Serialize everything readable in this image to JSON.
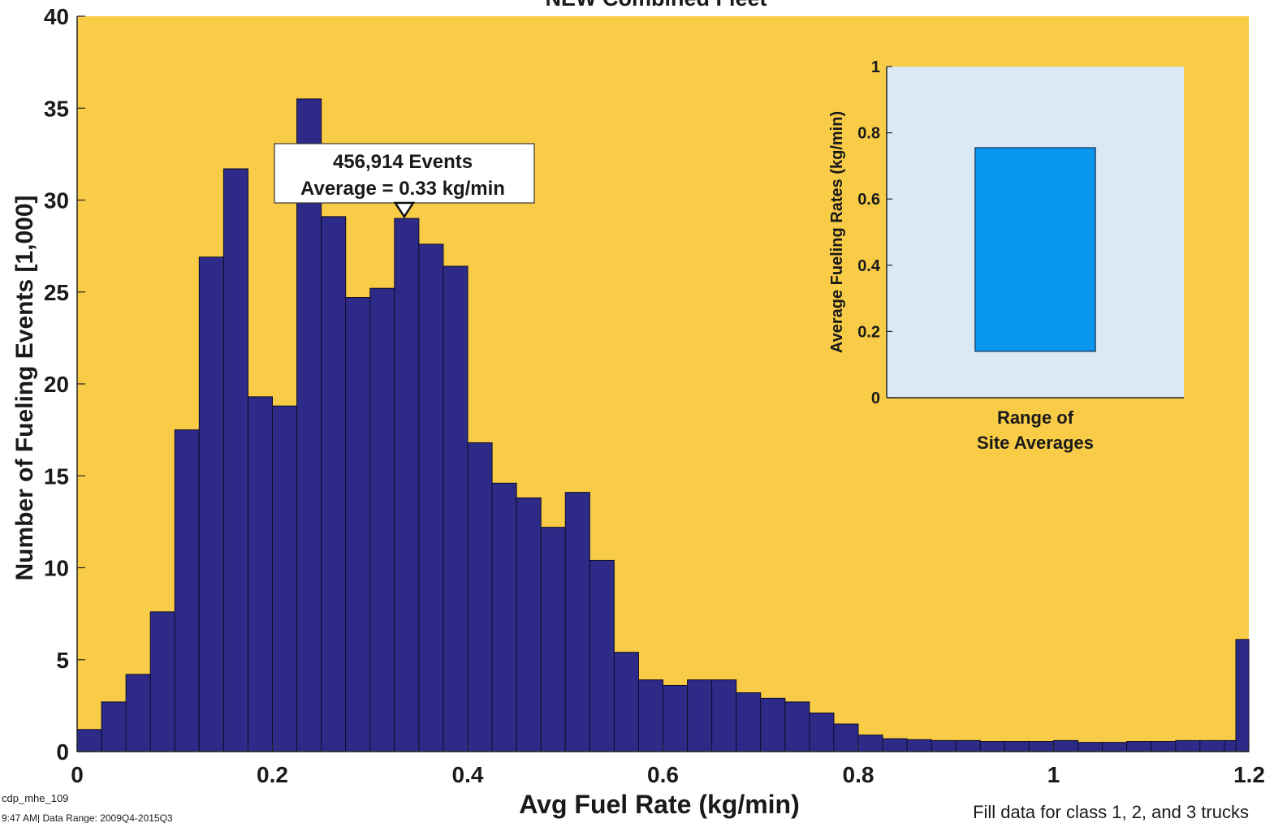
{
  "chart_data": [
    {
      "type": "bar",
      "title": "NEW Combined Fleet",
      "xlabel": "Avg Fuel Rate (kg/min)",
      "ylabel": "Number of Fueling Events [1,000]",
      "xlim": [
        0,
        1.2
      ],
      "ylim": [
        0,
        40
      ],
      "x_ticks": [
        "0",
        "0.2",
        "0.4",
        "0.6",
        "0.8",
        "1",
        "1.2"
      ],
      "y_ticks": [
        "0",
        "5",
        "10",
        "15",
        "20",
        "25",
        "30",
        "35",
        "40"
      ],
      "bin_width": 0.025,
      "bin_starts": [
        0,
        0.025,
        0.05,
        0.075,
        0.1,
        0.125,
        0.15,
        0.175,
        0.2,
        0.225,
        0.25,
        0.275,
        0.3,
        0.325,
        0.35,
        0.375,
        0.4,
        0.425,
        0.45,
        0.475,
        0.5,
        0.525,
        0.55,
        0.575,
        0.6,
        0.625,
        0.65,
        0.675,
        0.7,
        0.725,
        0.75,
        0.775,
        0.8,
        0.825,
        0.85,
        0.875,
        0.9,
        0.925,
        0.95,
        0.975,
        1.0,
        1.025,
        1.05,
        1.075,
        1.1,
        1.125,
        1.15,
        1.175
      ],
      "values": [
        1.2,
        2.7,
        4.2,
        7.6,
        17.5,
        26.9,
        31.7,
        19.3,
        18.8,
        35.5,
        29.1,
        24.7,
        25.2,
        29.0,
        27.6,
        26.4,
        16.8,
        14.6,
        13.8,
        12.2,
        14.1,
        10.4,
        5.4,
        3.9,
        3.6,
        3.9,
        3.9,
        3.2,
        2.9,
        2.7,
        2.1,
        1.5,
        0.9,
        0.7,
        0.65,
        0.6,
        0.6,
        0.55,
        0.55,
        0.55,
        0.6,
        0.5,
        0.5,
        0.55,
        0.55,
        0.6,
        0.6,
        0.6
      ],
      "last_bin_value": 6.1,
      "bar_color": "#2e2a87",
      "background_color": "#f9cc47",
      "grid": false,
      "annotation": {
        "line1": "456,914 Events",
        "line2": "Average = 0.33 kg/min",
        "marker_x": 0.335
      }
    },
    {
      "type": "bar",
      "xlabel_line1": "Range of",
      "xlabel_line2": "Site Averages",
      "ylabel": "Average Fueling Rates (kg/min)",
      "ylim": [
        0,
        1
      ],
      "y_ticks": [
        "0",
        "0.2",
        "0.4",
        "0.6",
        "0.8",
        "1"
      ],
      "range_low": 0.14,
      "range_high": 0.755,
      "bar_color": "#0a97f0",
      "background_color": "#dbe9f7"
    }
  ],
  "footer": {
    "left_line1": "cdp_mhe_109",
    "left_line2": "9:47 AM| Data Range: 2009Q4-2015Q3",
    "right": "Fill data for class 1, 2, and 3 trucks"
  }
}
